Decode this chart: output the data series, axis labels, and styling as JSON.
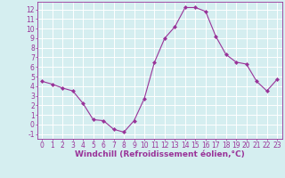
{
  "x": [
    0,
    1,
    2,
    3,
    4,
    5,
    6,
    7,
    8,
    9,
    10,
    11,
    12,
    13,
    14,
    15,
    16,
    17,
    18,
    19,
    20,
    21,
    22,
    23
  ],
  "y": [
    4.5,
    4.2,
    3.8,
    3.5,
    2.2,
    0.5,
    0.4,
    -0.5,
    -0.8,
    0.4,
    2.7,
    6.5,
    9.0,
    10.2,
    12.2,
    12.2,
    11.8,
    9.2,
    7.3,
    6.5,
    6.3,
    4.5,
    3.5,
    4.7
  ],
  "line_color": "#993399",
  "marker": "D",
  "marker_size": 2,
  "bg_color": "#d5eef0",
  "grid_color": "#ffffff",
  "xlabel": "Windchill (Refroidissement éolien,°C)",
  "xlabel_color": "#993399",
  "tick_color": "#993399",
  "spine_color": "#993399",
  "xlim": [
    -0.5,
    23.5
  ],
  "ylim": [
    -1.5,
    12.8
  ],
  "xticks": [
    0,
    1,
    2,
    3,
    4,
    5,
    6,
    7,
    8,
    9,
    10,
    11,
    12,
    13,
    14,
    15,
    16,
    17,
    18,
    19,
    20,
    21,
    22,
    23
  ],
  "yticks": [
    -1,
    0,
    1,
    2,
    3,
    4,
    5,
    6,
    7,
    8,
    9,
    10,
    11,
    12
  ],
  "tick_fontsize": 5.5,
  "xlabel_fontsize": 6.5
}
